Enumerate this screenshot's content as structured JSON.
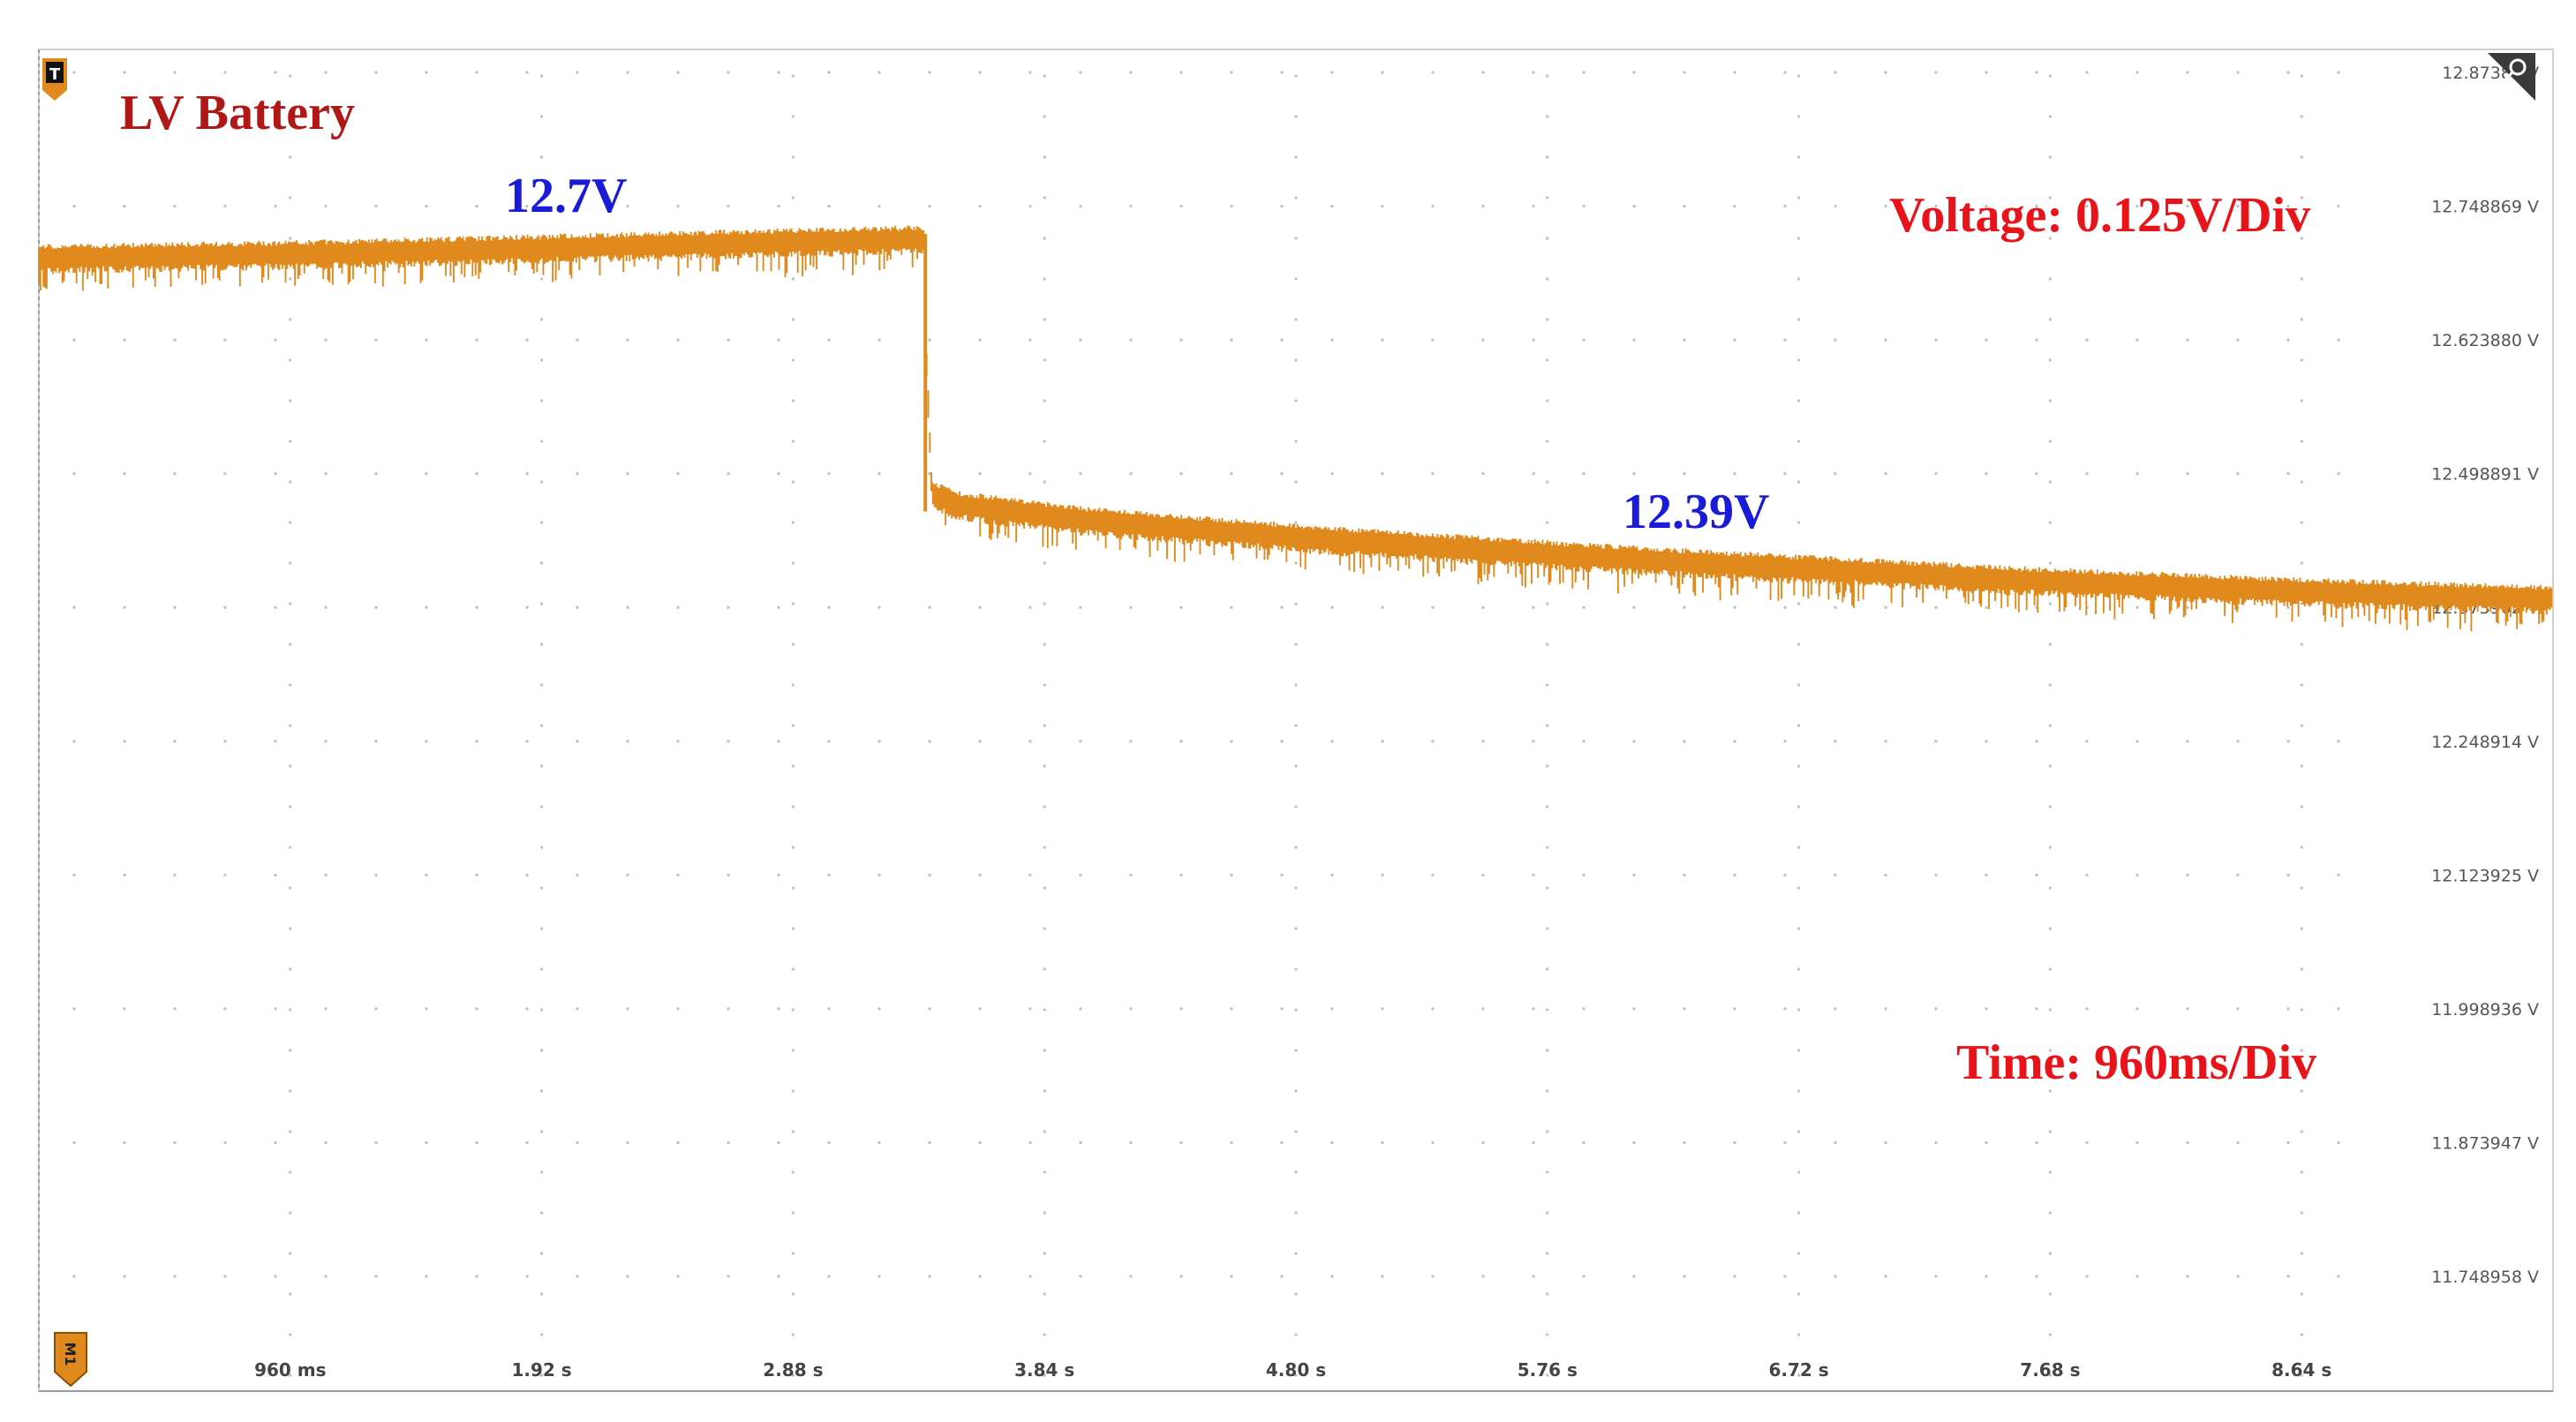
{
  "chart_data": {
    "type": "line",
    "title": "LV Battery",
    "xlabel": "",
    "ylabel": "",
    "x_tick_labels": [
      "960 ms",
      "1.92 s",
      "2.88 s",
      "3.84 s",
      "4.80 s",
      "5.76 s",
      "6.72 s",
      "7.68 s",
      "8.64 s"
    ],
    "x_ticks_s": [
      0.96,
      1.92,
      2.88,
      3.84,
      4.8,
      5.76,
      6.72,
      7.68,
      8.64
    ],
    "xlim_s": [
      0,
      9.6
    ],
    "y_tick_labels": [
      "12.87385 V",
      "12.748869 V",
      "12.623880 V",
      "12.498891 V",
      "12.373902 V",
      "12.248914 V",
      "12.123925 V",
      "11.998936 V",
      "11.873947 V",
      "11.748958 V"
    ],
    "y_ticks_v": [
      12.87385,
      12.748869,
      12.62388,
      12.498891,
      12.373902,
      12.248914,
      12.123925,
      11.998936,
      11.873947,
      11.748958
    ],
    "ylim_v": [
      11.7,
      12.874
    ],
    "grid": true,
    "series": [
      {
        "color": "#e08a1e",
        "x": [
          0,
          0.5,
          1.0,
          1.5,
          2.0,
          2.5,
          3.0,
          3.38,
          3.39,
          3.41,
          3.5,
          4.0,
          4.5,
          5.0,
          5.5,
          6.0,
          6.5,
          7.0,
          7.5,
          8.0,
          8.5,
          9.0,
          9.6
        ],
        "values": [
          12.7,
          12.702,
          12.704,
          12.707,
          12.71,
          12.713,
          12.716,
          12.718,
          12.6,
          12.48,
          12.47,
          12.455,
          12.445,
          12.436,
          12.428,
          12.42,
          12.413,
          12.407,
          12.4,
          12.395,
          12.39,
          12.386,
          12.382
        ]
      }
    ],
    "annotations": [
      {
        "text": "12.7V",
        "color": "#1a1ad9"
      },
      {
        "text": "12.39V",
        "color": "#1a1ad9"
      },
      {
        "text": "Voltage: 0.125V/Div",
        "color": "#e8141a"
      },
      {
        "text": "Time: 960ms/Div",
        "color": "#e8141a"
      }
    ],
    "title_color": "#b01818"
  },
  "markers": {
    "trigger_label": "T",
    "math_label": "M1"
  }
}
